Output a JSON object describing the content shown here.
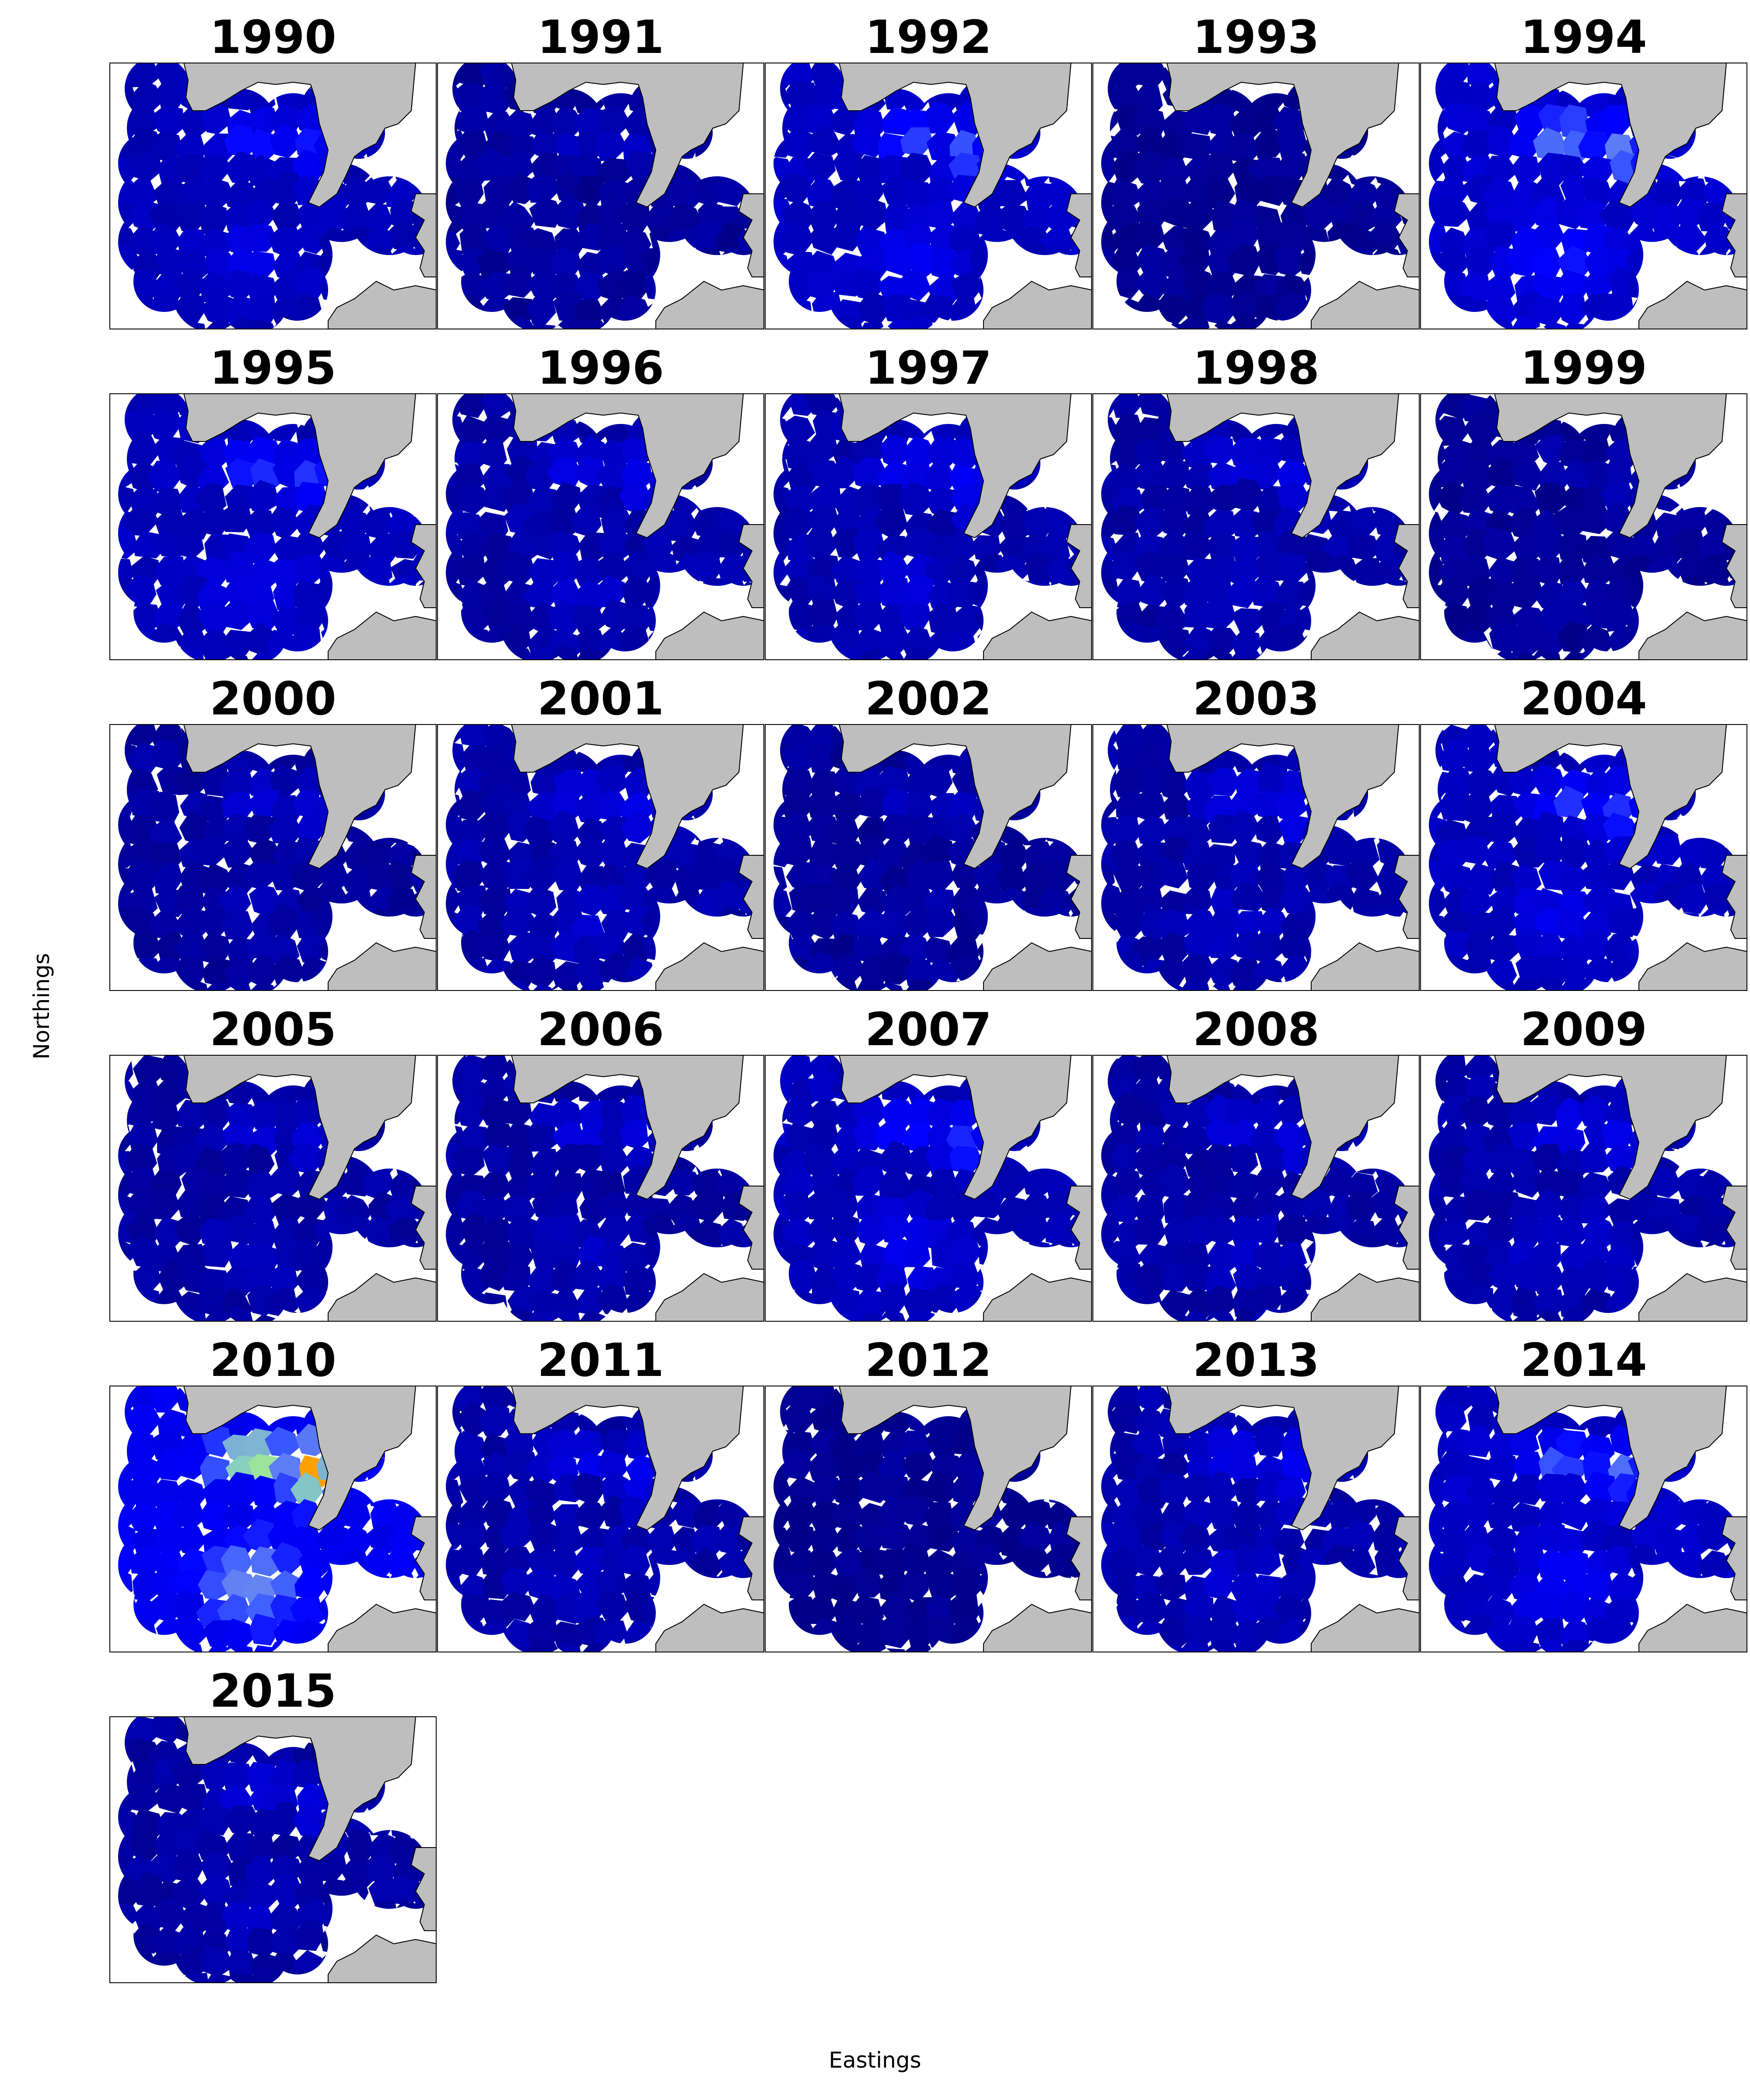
{
  "figure": {
    "xlabel": "Eastings",
    "ylabel": "Northings"
  },
  "colors": {
    "land": "#bebebe",
    "sea_background": "#ffffff",
    "coast_line": "#000000",
    "frame": "#000000",
    "colormap": [
      "#00008b",
      "#0000d0",
      "#0000ff",
      "#3f5fff",
      "#6f8fef",
      "#8fe0b0",
      "#ffff00",
      "#ff8c00",
      "#ff0000"
    ]
  },
  "maps": [
    {
      "year": "1990",
      "level": 0.22
    },
    {
      "year": "1991",
      "level": 0.08
    },
    {
      "year": "1992",
      "level": 0.28
    },
    {
      "year": "1993",
      "level": 0.03
    },
    {
      "year": "1994",
      "level": 0.35
    },
    {
      "year": "1995",
      "level": 0.25
    },
    {
      "year": "1996",
      "level": 0.15
    },
    {
      "year": "1997",
      "level": 0.18
    },
    {
      "year": "1998",
      "level": 0.14
    },
    {
      "year": "1999",
      "level": 0.05
    },
    {
      "year": "2000",
      "level": 0.1
    },
    {
      "year": "2001",
      "level": 0.15
    },
    {
      "year": "2002",
      "level": 0.08
    },
    {
      "year": "2003",
      "level": 0.14
    },
    {
      "year": "2004",
      "level": 0.25
    },
    {
      "year": "2005",
      "level": 0.12
    },
    {
      "year": "2006",
      "level": 0.12
    },
    {
      "year": "2007",
      "level": 0.24
    },
    {
      "year": "2008",
      "level": 0.13
    },
    {
      "year": "2009",
      "level": 0.16
    },
    {
      "year": "2010",
      "level": 0.6
    },
    {
      "year": "2011",
      "level": 0.15
    },
    {
      "year": "2012",
      "level": 0.02
    },
    {
      "year": "2013",
      "level": 0.17
    },
    {
      "year": "2014",
      "level": 0.3
    },
    {
      "year": "2015",
      "level": 0.12
    }
  ]
}
